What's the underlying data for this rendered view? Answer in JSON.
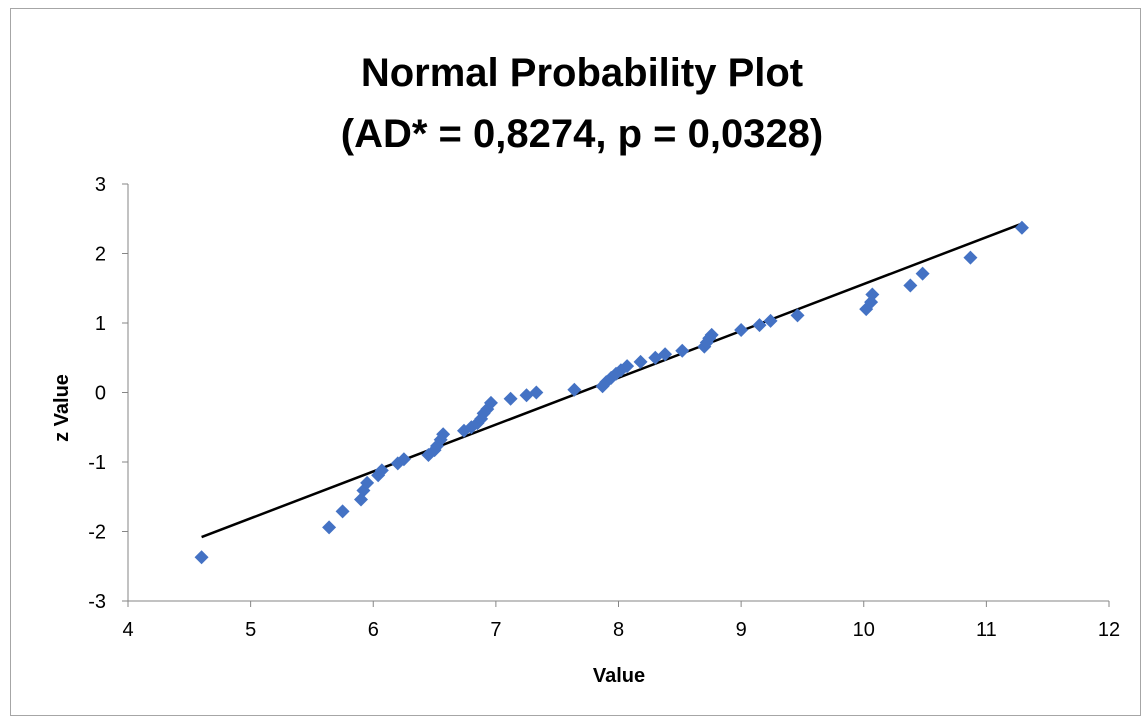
{
  "chart_data": {
    "type": "scatter",
    "title": [
      "Normal Probability Plot",
      "(AD* = 0,8274, p = 0,0328)"
    ],
    "xlabel": "Value",
    "ylabel": "z Value",
    "xlim": [
      4,
      12
    ],
    "ylim": [
      -3,
      3
    ],
    "x_ticks": [
      "4",
      "5",
      "6",
      "7",
      "8",
      "9",
      "10",
      "11",
      "12"
    ],
    "y_ticks": [
      "3",
      "2",
      "1",
      "0",
      "-1",
      "-2",
      "-3"
    ],
    "grid": false,
    "legend": "none",
    "marker": "diamond",
    "marker_color": "#4472C4",
    "line_color": "#000000",
    "points": [
      {
        "x": 4.6,
        "y": -2.37
      },
      {
        "x": 5.64,
        "y": -1.94
      },
      {
        "x": 5.75,
        "y": -1.71
      },
      {
        "x": 5.9,
        "y": -1.54
      },
      {
        "x": 5.92,
        "y": -1.41
      },
      {
        "x": 5.95,
        "y": -1.3
      },
      {
        "x": 6.04,
        "y": -1.19
      },
      {
        "x": 6.07,
        "y": -1.12
      },
      {
        "x": 6.2,
        "y": -1.02
      },
      {
        "x": 6.25,
        "y": -0.96
      },
      {
        "x": 6.45,
        "y": -0.9
      },
      {
        "x": 6.5,
        "y": -0.83
      },
      {
        "x": 6.52,
        "y": -0.77
      },
      {
        "x": 6.55,
        "y": -0.68
      },
      {
        "x": 6.57,
        "y": -0.6
      },
      {
        "x": 6.74,
        "y": -0.55
      },
      {
        "x": 6.8,
        "y": -0.5
      },
      {
        "x": 6.85,
        "y": -0.44
      },
      {
        "x": 6.88,
        "y": -0.38
      },
      {
        "x": 6.9,
        "y": -0.3
      },
      {
        "x": 6.93,
        "y": -0.24
      },
      {
        "x": 6.96,
        "y": -0.15
      },
      {
        "x": 7.12,
        "y": -0.09
      },
      {
        "x": 7.25,
        "y": -0.04
      },
      {
        "x": 7.33,
        "y": 0.0
      },
      {
        "x": 7.64,
        "y": 0.04
      },
      {
        "x": 7.87,
        "y": 0.09
      },
      {
        "x": 7.9,
        "y": 0.15
      },
      {
        "x": 7.94,
        "y": 0.21
      },
      {
        "x": 7.98,
        "y": 0.27
      },
      {
        "x": 8.02,
        "y": 0.32
      },
      {
        "x": 8.07,
        "y": 0.38
      },
      {
        "x": 8.18,
        "y": 0.44
      },
      {
        "x": 8.3,
        "y": 0.5
      },
      {
        "x": 8.38,
        "y": 0.55
      },
      {
        "x": 8.52,
        "y": 0.6
      },
      {
        "x": 8.7,
        "y": 0.66
      },
      {
        "x": 8.72,
        "y": 0.72
      },
      {
        "x": 8.74,
        "y": 0.78
      },
      {
        "x": 8.76,
        "y": 0.83
      },
      {
        "x": 9.0,
        "y": 0.9
      },
      {
        "x": 9.15,
        "y": 0.97
      },
      {
        "x": 9.24,
        "y": 1.03
      },
      {
        "x": 9.46,
        "y": 1.11
      },
      {
        "x": 10.02,
        "y": 1.2
      },
      {
        "x": 10.06,
        "y": 1.3
      },
      {
        "x": 10.07,
        "y": 1.41
      },
      {
        "x": 10.38,
        "y": 1.54
      },
      {
        "x": 10.48,
        "y": 1.71
      },
      {
        "x": 10.87,
        "y": 1.94
      },
      {
        "x": 11.29,
        "y": 2.37
      }
    ],
    "fit_line": {
      "x": [
        4.6,
        11.29
      ],
      "y": [
        -2.08,
        2.43
      ]
    }
  }
}
